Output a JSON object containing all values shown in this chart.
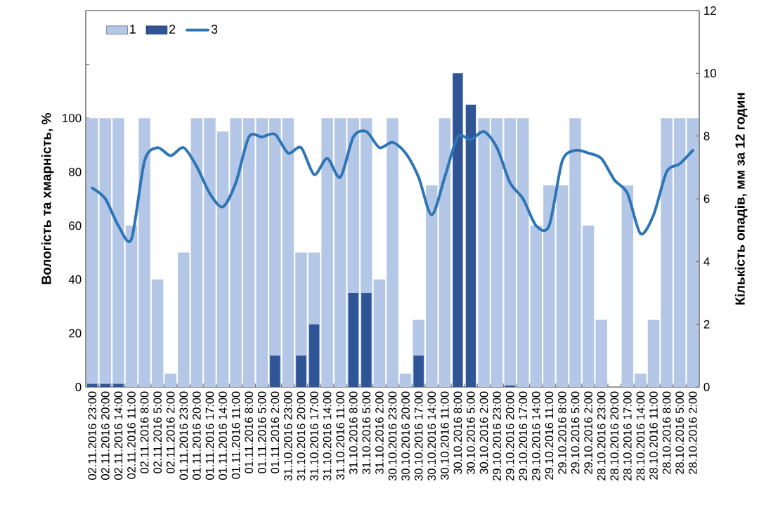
{
  "chart_data": {
    "type": "bar",
    "ylabel": "Вологість та хмарність, %",
    "y2label": "Кількість опадів, мм за 12 годин",
    "categories": [
      "02.11.2016 23:00",
      "02.11.2016 20:00",
      "02.11.2016 14:00",
      "02.11.2016 11:00",
      "02.11.2016 8:00",
      "02.11.2016 5:00",
      "02.11.2016 2:00",
      "01.11.2016 23:00",
      "01.11.2016 20:00",
      "01.11.2016 17:00",
      "01.11.2016 14:00",
      "01.11.2016 11:00",
      "01.11.2016 8:00",
      "01.11.2016 5:00",
      "01.11.2016 2:00",
      "31.10.2016 23:00",
      "31.10.2016 20:00",
      "31.10.2016 17:00",
      "31.10.2016 14:00",
      "31.10.2016 11:00",
      "31.10.2016 8:00",
      "31.10.2016 5:00",
      "31.10.2016 2:00",
      "30.10.2016 23:00",
      "30.10.2016 20:00",
      "30.10.2016 17:00",
      "30.10.2016 14:00",
      "30.10.2016 11:00",
      "30.10.2016 8:00",
      "30.10.2016 5:00",
      "30.10.2016 2:00",
      "29.10.2016 23:00",
      "29.10.2016 20:00",
      "29.10.2016 17:00",
      "29.10.2016 14:00",
      "29.10.2016 11:00",
      "29.10.2016 8:00",
      "29.10.2016 5:00",
      "29.10.2016 2:00",
      "28.10.2016 23:00",
      "28.10.2016 20:00",
      "28.10.2016 17:00",
      "28.10.2016 14:00",
      "28.10.2016 11:00",
      "28.10.2016 8:00",
      "28.10.2016 5:00",
      "28.10.2016 2:00"
    ],
    "series": [
      {
        "name": "1",
        "color": "#b4c7e7",
        "values": [
          100,
          100,
          100,
          60,
          100,
          40,
          5,
          50,
          100,
          100,
          95,
          100,
          100,
          100,
          100,
          100,
          50,
          50,
          100,
          100,
          100,
          100,
          40,
          100,
          5,
          25,
          75,
          100,
          null,
          null,
          100,
          100,
          100,
          100,
          60,
          75,
          75,
          100,
          60,
          25,
          0,
          75,
          5,
          25,
          100,
          100,
          100
        ]
      },
      {
        "name": "2",
        "axis": "y2",
        "color": "#2f5597",
        "values": [
          0.1,
          0.1,
          0.1,
          0,
          0,
          0,
          0,
          0,
          0,
          0,
          0,
          0,
          0,
          0,
          1,
          0,
          1,
          2,
          0,
          0,
          3,
          3,
          0,
          0,
          0,
          1,
          0,
          0,
          10,
          9,
          0,
          0,
          0.05,
          0,
          0,
          0,
          0,
          0,
          0,
          0,
          0,
          0,
          0,
          0,
          0,
          0,
          0
        ]
      },
      {
        "name": "3",
        "type": "line",
        "color": "#2e75b6",
        "values": [
          74,
          70,
          60,
          55,
          84,
          89,
          86,
          89,
          82,
          72,
          67,
          76,
          93,
          93,
          94,
          87,
          89,
          79,
          85,
          78,
          93,
          95,
          89,
          91,
          87,
          78,
          64,
          78,
          93,
          92,
          95,
          89,
          76,
          70,
          60,
          60,
          84,
          88,
          87,
          85,
          77,
          72,
          57,
          64,
          80,
          83,
          88
        ]
      }
    ],
    "ylim": [
      0,
      140
    ],
    "yticks": [
      0,
      20,
      40,
      60,
      80,
      100,
      {
        "value": 120,
        "label": null
      }
    ],
    "y2lim": [
      0,
      12
    ],
    "y2ticks": [
      0,
      2,
      4,
      6,
      8,
      10,
      12
    ],
    "legend": "top left"
  }
}
